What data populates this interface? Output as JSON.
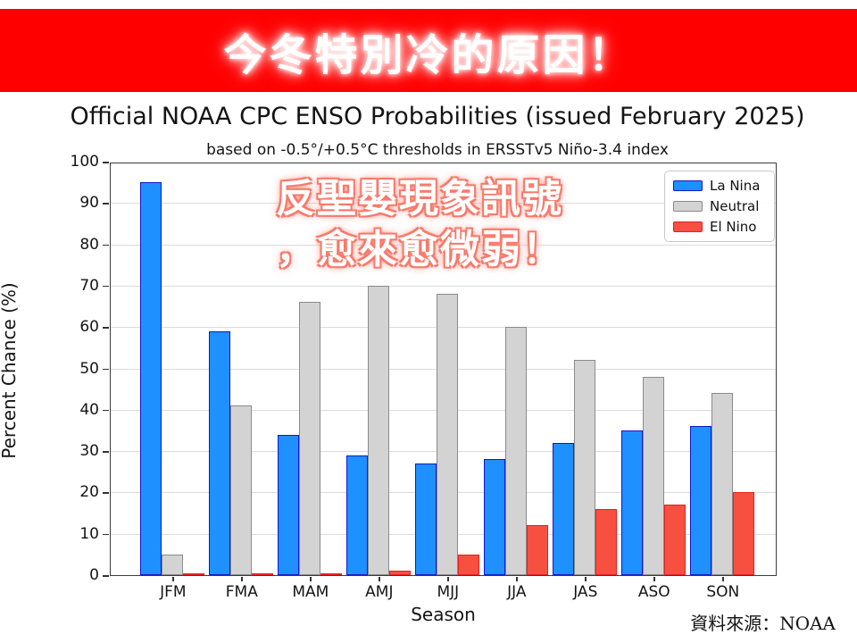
{
  "banner": {
    "text": "今冬特別冷的原因！",
    "bg_color": "#ff0000",
    "text_color": "#ffffff"
  },
  "title": "Official NOAA CPC ENSO Probabilities (issued February 2025)",
  "subtitle": "based on -0.5°/+0.5°C thresholds in ERSSTv5 Niño-3.4 index",
  "annotation": {
    "line1": "反聖嬰現象訊號",
    "line2": "，愈來愈微弱！",
    "text_color": "#ffffff",
    "glow_color": "#f87a6b"
  },
  "source_note": "資料來源：NOAA",
  "chart_data": {
    "type": "bar",
    "title": "Official NOAA CPC ENSO Probabilities (issued February 2025)",
    "subtitle": "based on -0.5°/+0.5°C thresholds in ERSSTv5 Niño-3.4 index",
    "categories": [
      "JFM",
      "FMA",
      "MAM",
      "AMJ",
      "MJJ",
      "JJA",
      "JAS",
      "ASO",
      "SON"
    ],
    "series": [
      {
        "name": "La Nina",
        "color": "#1E90FF",
        "edge_color": "#1515CD",
        "values": [
          95,
          59,
          34,
          29,
          27,
          28,
          32,
          35,
          36
        ]
      },
      {
        "name": "Neutral",
        "color": "#D3D3D3",
        "edge_color": "#8A8A8A",
        "values": [
          5,
          41,
          66,
          70,
          68,
          60,
          52,
          48,
          44
        ]
      },
      {
        "name": "El Nino",
        "color": "#F75040",
        "edge_color": "#E62020",
        "values": [
          0,
          0,
          0,
          1,
          5,
          12,
          16,
          17,
          20
        ]
      }
    ],
    "xlabel": "Season",
    "ylabel": "Percent Chance (%)",
    "ylim": [
      0,
      100
    ],
    "yticks": [
      0,
      10,
      20,
      30,
      40,
      50,
      60,
      70,
      80,
      90,
      100
    ],
    "grid": true,
    "legend_position": "upper right"
  }
}
